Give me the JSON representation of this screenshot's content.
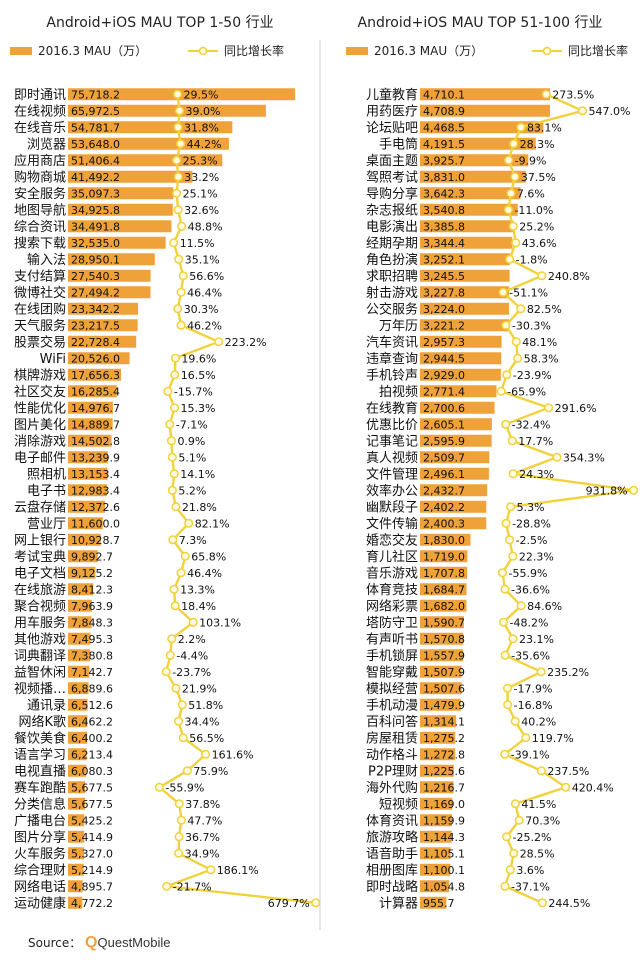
{
  "source": {
    "label": "Source：",
    "brand": "QuestMobile"
  },
  "colors": {
    "bar": "#f0a23a",
    "line": "#f2d23c",
    "marker": "#fffbe0"
  },
  "chart_data": [
    {
      "type": "bar",
      "title": "Android+iOS MAU TOP 1-50 行业",
      "legend": {
        "bar": "2016.3 MAU（万）",
        "line": "同比增长率",
        "placement": "top"
      },
      "series": [
        {
          "name": "2016.3 MAU（万）",
          "type": "bar"
        },
        {
          "name": "同比增长率",
          "type": "line"
        }
      ],
      "categories": [
        "即时通讯",
        "在线视频",
        "在线音乐",
        "浏览器",
        "应用商店",
        "购物商城",
        "安全服务",
        "地图导航",
        "综合资讯",
        "搜索下载",
        "输入法",
        "支付结算",
        "微博社交",
        "在线团购",
        "天气服务",
        "股票交易",
        "WiFi",
        "棋牌游戏",
        "社区交友",
        "性能优化",
        "图片美化",
        "消除游戏",
        "电子邮件",
        "照相机",
        "电子书",
        "云盘存储",
        "营业厅",
        "网上银行",
        "考试宝典",
        "电子文档",
        "在线旅游",
        "聚合视频",
        "用车服务",
        "其他游戏",
        "词典翻译",
        "益智休闲",
        "视频播…",
        "通讯录",
        "网络K歌",
        "餐饮美食",
        "语言学习",
        "电视直播",
        "赛车跑酷",
        "分类信息",
        "广播电台",
        "图片分享",
        "火车服务",
        "综合理财",
        "网络电话",
        "运动健康"
      ],
      "values": [
        75718.2,
        65972.5,
        54781.7,
        53648.0,
        51406.4,
        41492.2,
        35097.3,
        34925.8,
        34491.8,
        32535.0,
        28950.1,
        27540.3,
        27494.2,
        23342.2,
        23217.5,
        22728.4,
        20526.0,
        17656.3,
        16285.4,
        14976.7,
        14889.7,
        14502.8,
        13239.9,
        13153.4,
        12983.4,
        12372.6,
        11600.0,
        10928.7,
        9892.7,
        9125.2,
        8412.3,
        7963.9,
        7848.3,
        7495.3,
        7380.8,
        7142.7,
        6889.6,
        6512.6,
        6462.2,
        6400.2,
        6213.4,
        6080.3,
        5677.5,
        5677.5,
        5425.2,
        5414.9,
        5327.0,
        5214.9,
        4895.7,
        4772.2
      ],
      "value_labels": [
        "75,718.2",
        "65,972.5",
        "54,781.7",
        "53,648.0",
        "51,406.4",
        "41,492.2",
        "35,097.3",
        "34,925.8",
        "34,491.8",
        "32,535.0",
        "28,950.1",
        "27,540.3",
        "27,494.2",
        "23,342.2",
        "23,217.5",
        "22,728.4",
        "20,526.0",
        "17,656.3",
        "16,285.4",
        "14,976.7",
        "14,889.7",
        "14,502.8",
        "13,239.9",
        "13,153.4",
        "12,983.4",
        "12,372.6",
        "11,600.0",
        "10,928.7",
        "9,892.7",
        "9,125.2",
        "8,412.3",
        "7,963.9",
        "7,848.3",
        "7,495.3",
        "7,380.8",
        "7,142.7",
        "6,889.6",
        "6,512.6",
        "6,462.2",
        "6,400.2",
        "6,213.4",
        "6,080.3",
        "5,677.5",
        "5,677.5",
        "5,425.2",
        "5,414.9",
        "5,327.0",
        "5,214.9",
        "4,895.7",
        "4,772.2"
      ],
      "growth": [
        29.5,
        39.0,
        31.8,
        44.2,
        25.3,
        33.2,
        25.1,
        32.6,
        48.8,
        11.5,
        35.1,
        56.6,
        46.4,
        30.3,
        46.2,
        223.2,
        19.6,
        16.5,
        -15.7,
        15.3,
        -7.1,
        0.9,
        5.1,
        14.1,
        5.2,
        21.8,
        82.1,
        7.3,
        65.8,
        46.4,
        13.3,
        18.4,
        103.1,
        2.2,
        -4.4,
        -23.7,
        21.9,
        51.8,
        34.4,
        56.5,
        161.6,
        75.9,
        -55.9,
        37.8,
        47.7,
        36.7,
        34.9,
        186.1,
        -21.7,
        679.7
      ],
      "growth_labels": [
        "29.5%",
        "39.0%",
        "31.8%",
        "44.2%",
        "25.3%",
        "33.2%",
        "25.1%",
        "32.6%",
        "48.8%",
        "11.5%",
        "35.1%",
        "56.6%",
        "46.4%",
        "30.3%",
        "46.2%",
        "223.2%",
        "19.6%",
        "16.5%",
        "-15.7%",
        "15.3%",
        "-7.1%",
        "0.9%",
        "5.1%",
        "14.1%",
        "5.2%",
        "21.8%",
        "82.1%",
        "7.3%",
        "65.8%",
        "46.4%",
        "13.3%",
        "18.4%",
        "103.1%",
        "2.2%",
        "-4.4%",
        "-23.7%",
        "21.9%",
        "51.8%",
        "34.4%",
        "56.5%",
        "161.6%",
        "75.9%",
        "-55.9%",
        "37.8%",
        "47.7%",
        "36.7%",
        "34.9%",
        "186.1%",
        "-21.7%",
        "679.7%"
      ],
      "xlim": [
        0,
        80000
      ],
      "growth_lim": [
        -100,
        700
      ],
      "grid": false
    },
    {
      "type": "bar",
      "title": "Android+iOS MAU TOP 51-100 行业",
      "legend": {
        "bar": "2016.3 MAU（万）",
        "line": "同比增长率",
        "placement": "top"
      },
      "series": [
        {
          "name": "2016.3 MAU（万）",
          "type": "bar"
        },
        {
          "name": "同比增长率",
          "type": "line"
        }
      ],
      "categories": [
        "儿童教育",
        "用药医疗",
        "论坛贴吧",
        "手电筒",
        "桌面主题",
        "驾照考试",
        "导购分享",
        "杂志报纸",
        "电影演出",
        "经期孕期",
        "角色扮演",
        "求职招聘",
        "射击游戏",
        "公交服务",
        "万年历",
        "汽车资讯",
        "违章查询",
        "手机铃声",
        "拍视频",
        "在线教育",
        "优惠比价",
        "记事笔记",
        "真人视频",
        "文件管理",
        "效率办公",
        "幽默段子",
        "文件传输",
        "婚恋交友",
        "育儿社区",
        "音乐游戏",
        "体育竞技",
        "网络彩票",
        "塔防守卫",
        "有声听书",
        "手机锁屏",
        "智能穿戴",
        "模拟经营",
        "手机动漫",
        "百科问答",
        "房屋租赁",
        "动作格斗",
        "P2P理财",
        "海外代购",
        "短视频",
        "体育资讯",
        "旅游攻略",
        "语音助手",
        "相册图库",
        "即时战略",
        "计算器"
      ],
      "values": [
        4710.1,
        4708.9,
        4468.5,
        4191.5,
        3925.7,
        3831.0,
        3642.3,
        3540.8,
        3385.8,
        3344.4,
        3252.1,
        3245.5,
        3227.8,
        3224.0,
        3221.2,
        2957.3,
        2944.5,
        2929.0,
        2771.4,
        2700.6,
        2605.1,
        2595.9,
        2509.7,
        2496.1,
        2432.7,
        2402.2,
        2400.3,
        1830.0,
        1719.0,
        1707.8,
        1684.7,
        1682.0,
        1590.7,
        1570.8,
        1557.9,
        1507.9,
        1507.6,
        1479.9,
        1314.1,
        1275.2,
        1272.8,
        1225.6,
        1216.7,
        1169.0,
        1159.9,
        1144.3,
        1105.1,
        1100.1,
        1054.8,
        955.7
      ],
      "value_labels": [
        "4,710.1",
        "4,708.9",
        "4,468.5",
        "4,191.5",
        "3,925.7",
        "3,831.0",
        "3,642.3",
        "3,540.8",
        "3,385.8",
        "3,344.4",
        "3,252.1",
        "3,245.5",
        "3,227.8",
        "3,224.0",
        "3,221.2",
        "2,957.3",
        "2,944.5",
        "2,929.0",
        "2,771.4",
        "2,700.6",
        "2,605.1",
        "2,595.9",
        "2,509.7",
        "2,496.1",
        "2,432.7",
        "2,402.2",
        "2,400.3",
        "1,830.0",
        "1,719.0",
        "1,707.8",
        "1,684.7",
        "1,682.0",
        "1,590.7",
        "1,570.8",
        "1,557.9",
        "1,507.9",
        "1,507.6",
        "1,479.9",
        "1,314.1",
        "1,275.2",
        "1,272.8",
        "1,225.6",
        "1,216.7",
        "1,169.0",
        "1,159.9",
        "1,144.3",
        "1,105.1",
        "1,100.1",
        "1,054.8",
        "955.7"
      ],
      "growth": [
        273.5,
        547.0,
        83.1,
        28.3,
        -9.9,
        37.5,
        7.6,
        -11.0,
        25.2,
        43.6,
        -1.8,
        240.8,
        -51.1,
        82.5,
        -30.3,
        48.1,
        58.3,
        -23.9,
        -65.9,
        291.6,
        -32.4,
        17.7,
        354.3,
        24.3,
        931.8,
        5.3,
        -28.8,
        -2.5,
        22.3,
        -55.9,
        -36.6,
        84.6,
        -48.2,
        23.1,
        -35.6,
        235.2,
        -17.9,
        -16.8,
        40.2,
        119.7,
        -39.1,
        237.5,
        420.4,
        41.5,
        70.3,
        -25.2,
        28.5,
        3.6,
        -37.1,
        244.5
      ],
      "growth_labels": [
        "273.5%",
        "547.0%",
        "83.1%",
        "28.3%",
        "-9.9%",
        "37.5%",
        "7.6%",
        "-11.0%",
        "25.2%",
        "43.6%",
        "-1.8%",
        "240.8%",
        "-51.1%",
        "82.5%",
        "-30.3%",
        "48.1%",
        "58.3%",
        "-23.9%",
        "-65.9%",
        "291.6%",
        "-32.4%",
        "17.7%",
        "354.3%",
        "24.3%",
        "931.8%",
        "5.3%",
        "-28.8%",
        "-2.5%",
        "22.3%",
        "-55.9%",
        "-36.6%",
        "84.6%",
        "-48.2%",
        "23.1%",
        "-35.6%",
        "235.2%",
        "-17.9%",
        "-16.8%",
        "40.2%",
        "119.7%",
        "-39.1%",
        "237.5%",
        "420.4%",
        "41.5%",
        "70.3%",
        "-25.2%",
        "28.5%",
        "3.6%",
        "-37.1%",
        "244.5%"
      ],
      "xlim": [
        0,
        5000
      ],
      "growth_lim": [
        -150,
        950
      ],
      "grid": false
    }
  ]
}
